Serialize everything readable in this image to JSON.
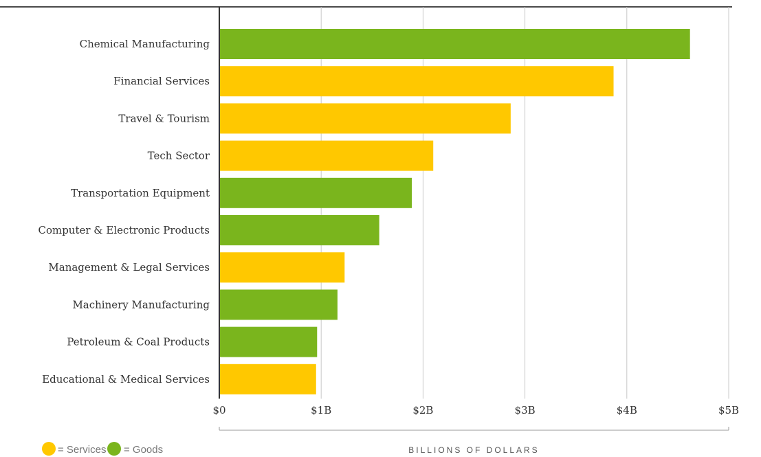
{
  "chart_data": {
    "type": "bar",
    "orientation": "horizontal",
    "categories": [
      "Chemical Manufacturing",
      "Financial Services",
      "Travel & Tourism",
      "Tech Sector",
      "Transportation Equipment",
      "Computer & Electronic Products",
      "Management & Legal Services",
      "Machinery Manufacturing",
      "Petroleum & Coal Products",
      "Educational & Medical Services"
    ],
    "values": [
      4.62,
      3.87,
      2.86,
      2.1,
      1.89,
      1.57,
      1.23,
      1.16,
      0.96,
      0.95
    ],
    "bar_groups": [
      "Goods",
      "Services",
      "Services",
      "Services",
      "Goods",
      "Goods",
      "Services",
      "Goods",
      "Goods",
      "Services"
    ],
    "xlim": [
      0,
      5
    ],
    "ticks": [
      0,
      1,
      2,
      3,
      4,
      5
    ],
    "tick_labels": [
      "$0",
      "$1B",
      "$2B",
      "$3B",
      "$4B",
      "$5B"
    ],
    "xlabel": "BILLIONS OF DOLLARS",
    "ylabel": "",
    "title": "",
    "grid": true,
    "legend_position": "bottom-left",
    "legend": [
      {
        "key": "Services",
        "label": "= Services",
        "color": "#FFC800"
      },
      {
        "key": "Goods",
        "label": "= Goods",
        "color": "#7AB51D"
      }
    ],
    "colors": {
      "Services": "#FFC800",
      "Goods": "#7AB51D"
    }
  }
}
